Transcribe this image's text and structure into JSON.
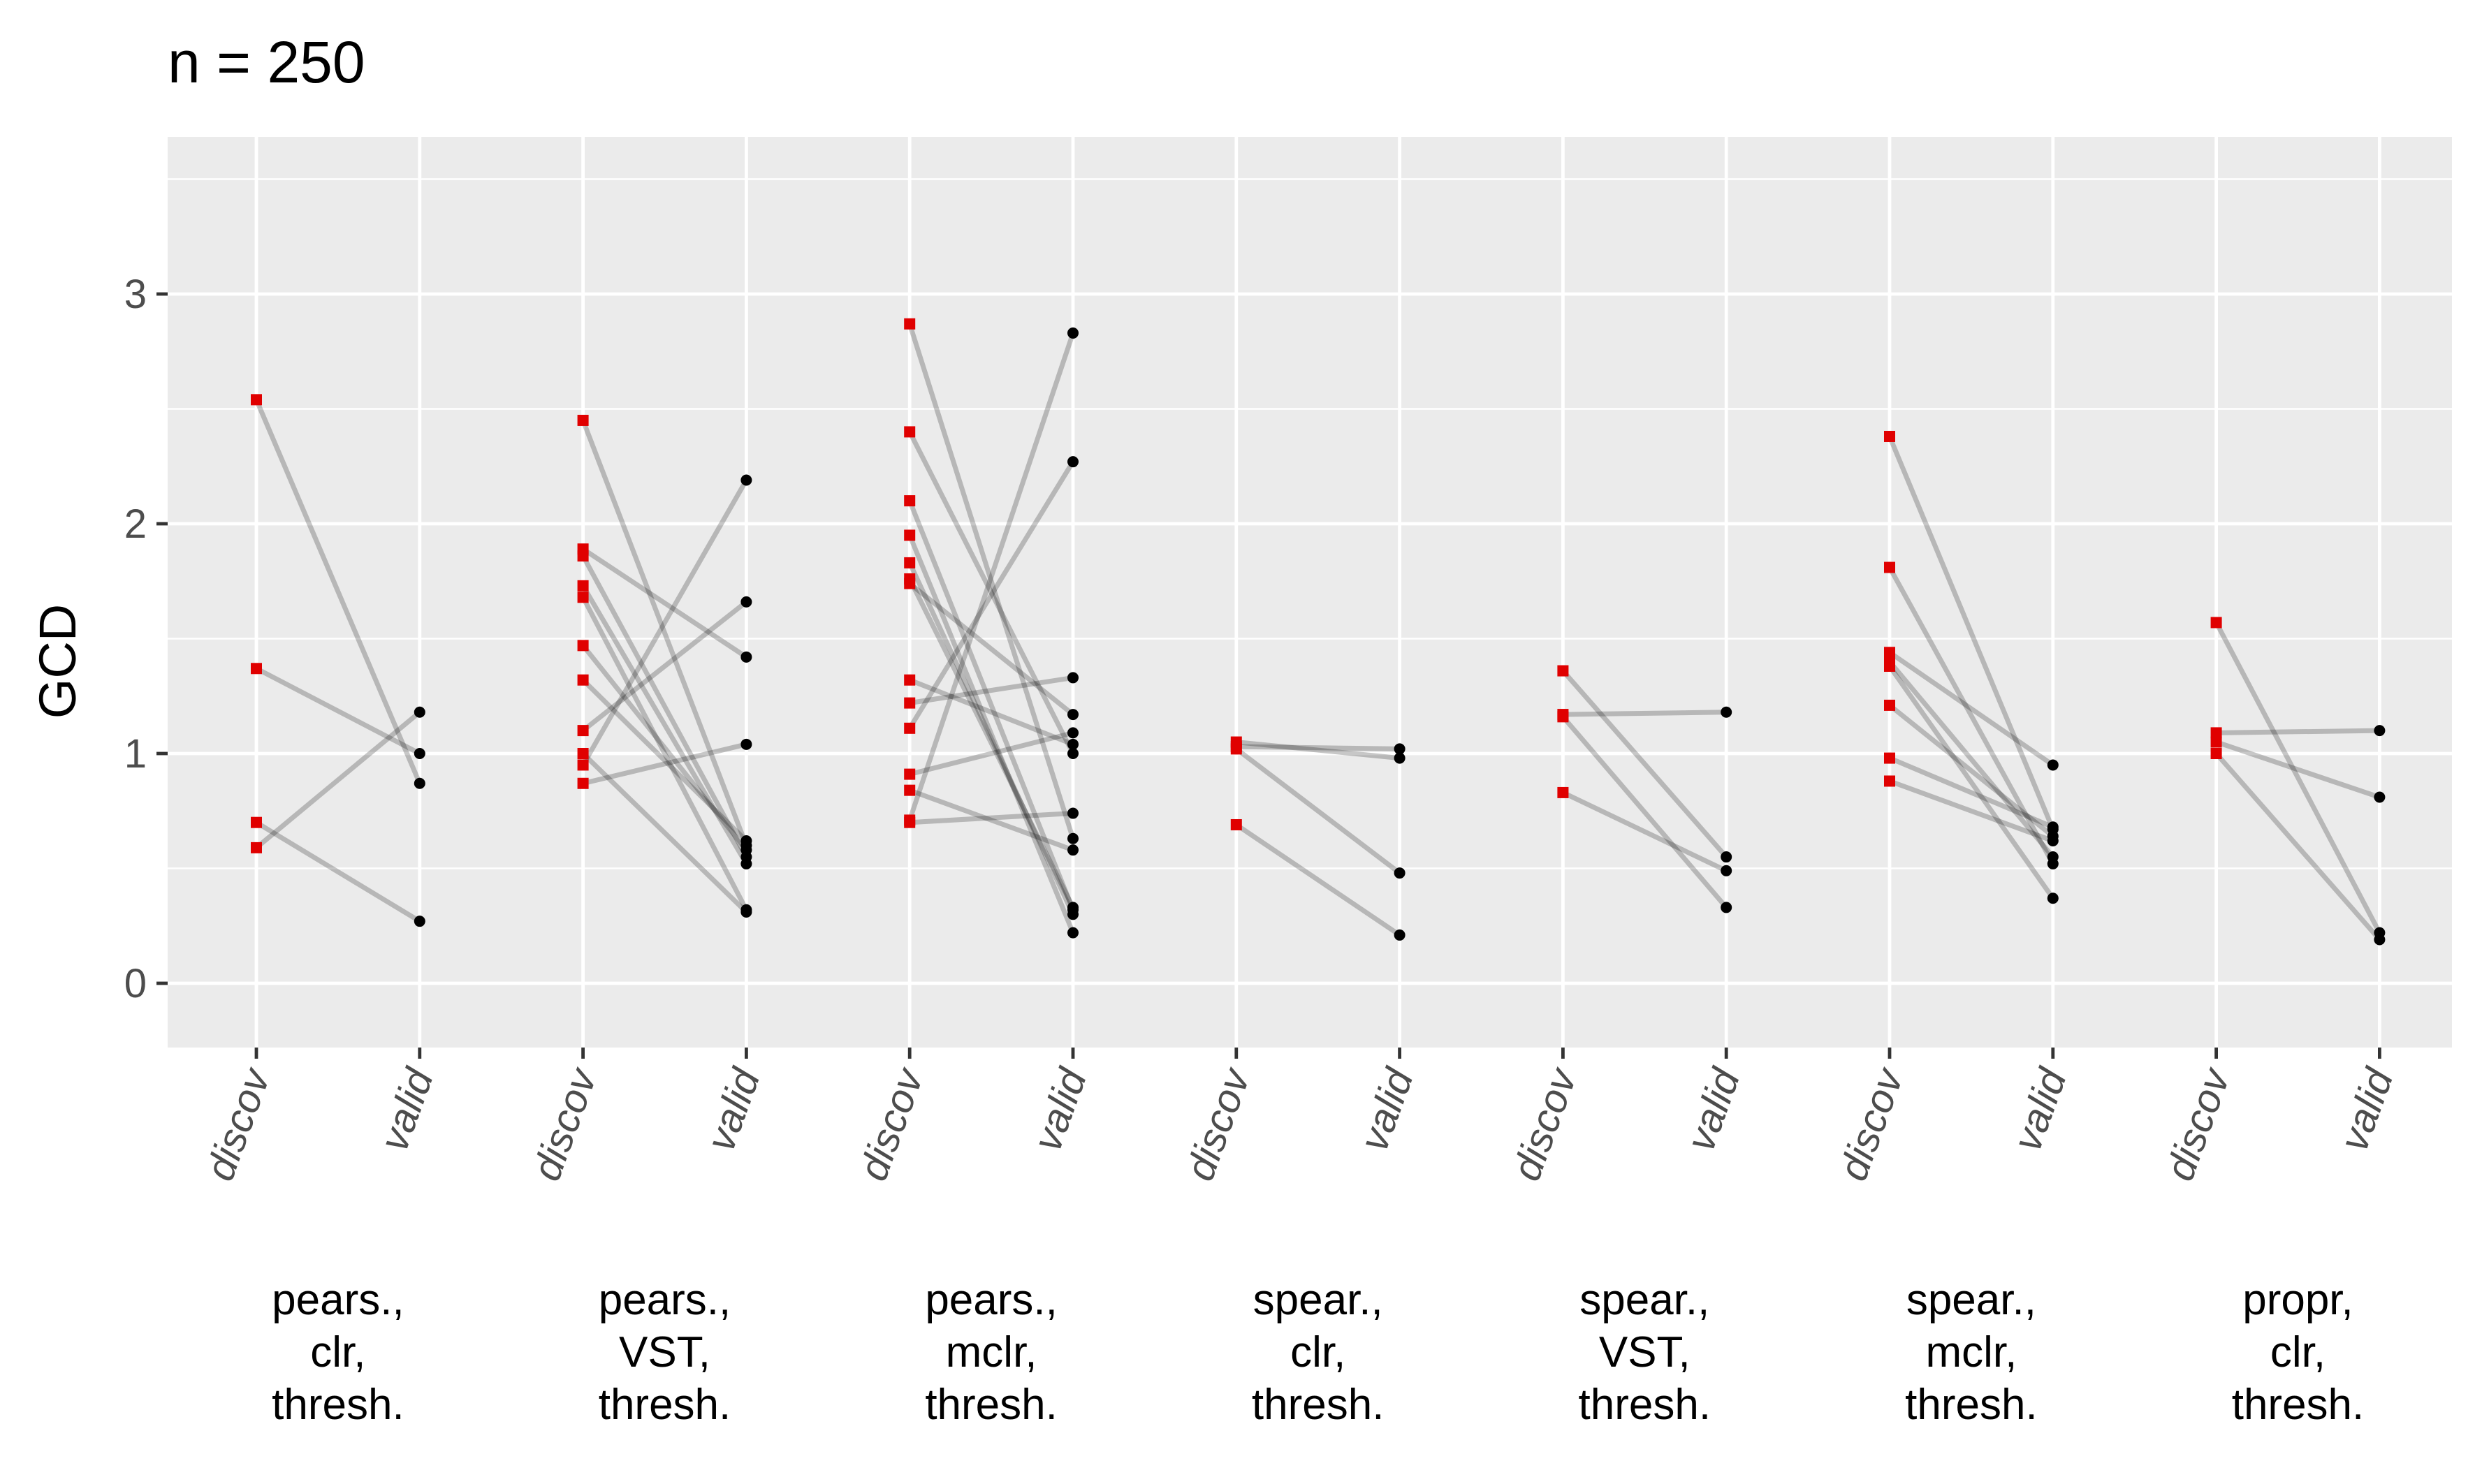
{
  "chart_data": {
    "type": "scatter",
    "title": "n = 250",
    "xlabel": "",
    "ylabel": "GCD",
    "ylim": [
      -0.27,
      3.6
    ],
    "yticks": [
      0,
      1,
      2,
      3
    ],
    "grid": true,
    "x_tick_labels": [
      "discov",
      "valid"
    ],
    "colors": {
      "discov": "#e00000",
      "valid": "#000000",
      "line": "#000000",
      "panel": "#ebebeb",
      "grid": "#ffffff"
    },
    "groups": [
      {
        "label": [
          "pears.,",
          "clr,",
          "thresh."
        ],
        "pairs": [
          [
            2.54,
            0.87
          ],
          [
            1.37,
            1.0
          ],
          [
            0.7,
            0.27
          ],
          [
            0.59,
            1.18
          ]
        ]
      },
      {
        "label": [
          "pears.,",
          "VST,",
          "thresh."
        ],
        "pairs": [
          [
            2.45,
            0.6
          ],
          [
            1.89,
            1.42
          ],
          [
            1.86,
            0.55
          ],
          [
            1.73,
            0.52
          ],
          [
            1.68,
            0.32
          ],
          [
            1.47,
            0.58
          ],
          [
            1.32,
            0.62
          ],
          [
            1.1,
            1.66
          ],
          [
            1.0,
            0.31
          ],
          [
            0.95,
            2.19
          ],
          [
            0.87,
            1.04
          ]
        ]
      },
      {
        "label": [
          "pears.,",
          "mclr,",
          "thresh."
        ],
        "pairs": [
          [
            2.87,
            0.63
          ],
          [
            2.4,
            1.0
          ],
          [
            2.1,
            0.32
          ],
          [
            1.95,
            0.22
          ],
          [
            1.83,
            0.3
          ],
          [
            1.76,
            0.33
          ],
          [
            1.74,
            1.17
          ],
          [
            1.32,
            1.04
          ],
          [
            1.22,
            1.33
          ],
          [
            1.11,
            2.27
          ],
          [
            0.91,
            1.09
          ],
          [
            0.84,
            0.58
          ],
          [
            0.71,
            2.83
          ],
          [
            0.7,
            0.74
          ]
        ]
      },
      {
        "label": [
          "spear.,",
          "clr,",
          "thresh."
        ],
        "pairs": [
          [
            1.05,
            0.98
          ],
          [
            1.03,
            1.02
          ],
          [
            1.02,
            0.48
          ],
          [
            0.69,
            0.21
          ]
        ]
      },
      {
        "label": [
          "spear.,",
          "VST,",
          "thresh."
        ],
        "pairs": [
          [
            1.36,
            0.55
          ],
          [
            1.17,
            1.18
          ],
          [
            1.16,
            0.33
          ],
          [
            0.83,
            0.49
          ]
        ]
      },
      {
        "label": [
          "spear.,",
          "mclr,",
          "thresh."
        ],
        "pairs": [
          [
            2.38,
            0.67
          ],
          [
            1.81,
            0.52
          ],
          [
            1.44,
            0.95
          ],
          [
            1.4,
            0.55
          ],
          [
            1.38,
            0.37
          ],
          [
            1.21,
            0.64
          ],
          [
            0.98,
            0.68
          ],
          [
            0.88,
            0.62
          ]
        ]
      },
      {
        "label": [
          "propr,",
          "clr,",
          "thresh."
        ],
        "pairs": [
          [
            1.57,
            0.22
          ],
          [
            1.09,
            1.1
          ],
          [
            1.05,
            0.81
          ],
          [
            1.0,
            0.19
          ]
        ]
      }
    ]
  }
}
